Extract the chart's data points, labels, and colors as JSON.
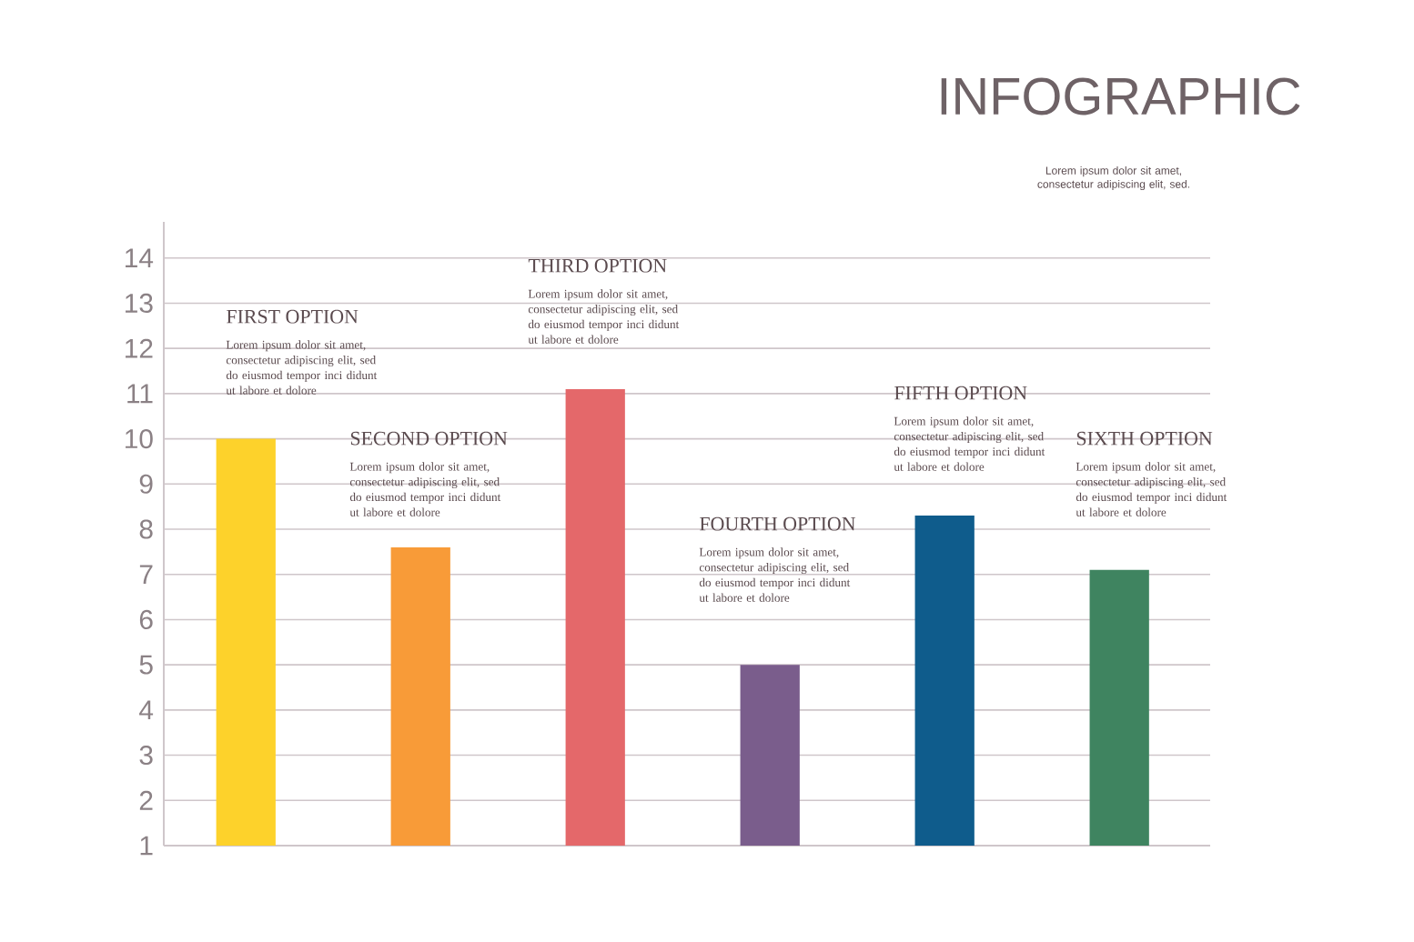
{
  "chart_data": {
    "type": "bar",
    "title": "INFOGRAPHIC",
    "subtitle": "Lorem ipsum dolor sit amet, consectetur adipiscing elit, sed.",
    "categories": [
      "FIRST OPTION",
      "SECOND OPTION",
      "THIRD OPTION",
      "FOURTH OPTION",
      "FIFTH OPTION",
      "SIXTH OPTION"
    ],
    "values": [
      10,
      7.6,
      11.1,
      5,
      8.3,
      7.1
    ],
    "colors": [
      "#fdd22b",
      "#f89b38",
      "#e4686a",
      "#7a5d8c",
      "#0f5c8c",
      "#3f8460"
    ],
    "ylim": [
      1,
      14.8
    ],
    "yticks": [
      1,
      2,
      3,
      4,
      5,
      6,
      7,
      8,
      9,
      10,
      11,
      12,
      13,
      14
    ],
    "grid": "y",
    "annotations": [
      "Lorem ipsum dolor sit amet, consectetur adipiscing elit, sed do eiusmod tempor inci didunt ut labore et dolore",
      "Lorem ipsum dolor sit amet, consectetur adipiscing elit, sed do eiusmod tempor inci didunt ut labore et dolore",
      "Lorem ipsum dolor sit amet, consectetur adipiscing elit, sed do eiusmod tempor inci didunt ut labore et dolore",
      "Lorem ipsum dolor sit amet, consectetur adipiscing elit, sed do eiusmod tempor inci didunt ut labore et dolore",
      "Lorem ipsum dolor sit amet, consectetur adipiscing elit, sed do eiusmod tempor inci didunt ut labore et dolore",
      "Lorem ipsum dolor sit amet, consectetur adipiscing elit, sed do eiusmod tempor inci didunt ut labore et dolore"
    ]
  }
}
